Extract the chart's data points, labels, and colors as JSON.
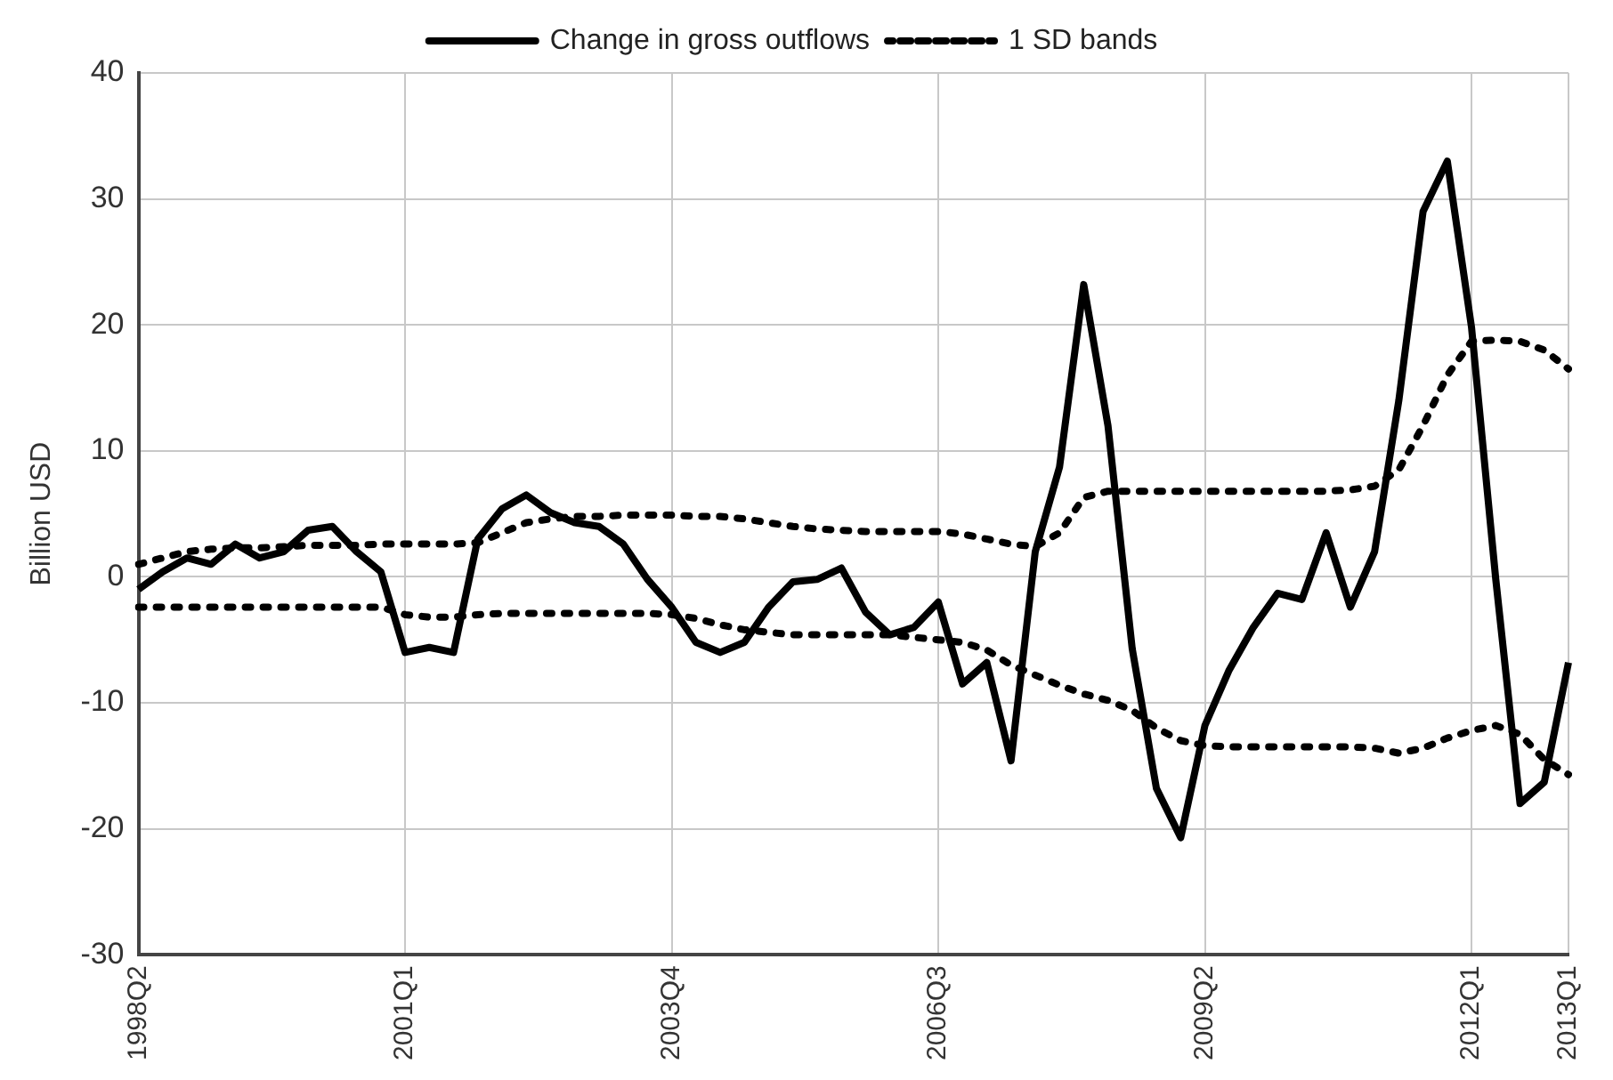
{
  "chart_data": {
    "type": "line",
    "ylabel": "Billion USD",
    "categories": [
      "1998Q2",
      null,
      null,
      null,
      null,
      null,
      null,
      null,
      null,
      null,
      null,
      "2001Q1",
      null,
      null,
      null,
      null,
      null,
      null,
      null,
      null,
      null,
      null,
      "2003Q4",
      null,
      null,
      null,
      null,
      null,
      null,
      null,
      null,
      null,
      null,
      "2006Q3",
      null,
      null,
      null,
      null,
      null,
      null,
      null,
      null,
      null,
      null,
      "2009Q2",
      null,
      null,
      null,
      null,
      null,
      null,
      null,
      null,
      null,
      null,
      "2012Q1",
      null,
      null,
      null,
      "2013Q1"
    ],
    "series": [
      {
        "name": "Change in gross outflows",
        "color": "#000000",
        "line_style": "solid",
        "values": [
          -1,
          0.4,
          1.5,
          1,
          2.6,
          1.5,
          2,
          3.7,
          4,
          2,
          0.4,
          -6,
          -5.6,
          -6,
          3,
          5.4,
          6.5,
          5.1,
          4.3,
          4,
          2.6,
          -0.2,
          -2.4,
          -5.2,
          -6,
          -5.2,
          -2.4,
          -0.4,
          -0.2,
          0.7,
          -2.8,
          -4.6,
          -4,
          -2,
          -8.5,
          -6.8,
          -14.6,
          2,
          8.7,
          23.2,
          12,
          -5.7,
          -16.8,
          -20.7,
          -11.8,
          -7.4,
          -4,
          -1.3,
          -1.8,
          3.5,
          -2.4,
          2,
          14,
          29,
          33,
          19.8,
          -0.2,
          -18,
          -16.3,
          -6.8
        ]
      },
      {
        "name": "1 SD bands",
        "color": "#000000",
        "line_style": "dotted",
        "values": [
          1,
          1.5,
          2,
          2.2,
          2.3,
          2.3,
          2.4,
          2.5,
          2.5,
          2.5,
          2.6,
          2.6,
          2.6,
          2.6,
          2.7,
          3.5,
          4.3,
          4.6,
          4.8,
          4.8,
          4.9,
          4.9,
          4.9,
          4.8,
          4.8,
          4.6,
          4.3,
          4,
          3.8,
          3.7,
          3.6,
          3.6,
          3.6,
          3.6,
          3.4,
          3,
          2.6,
          2.4,
          3.5,
          6.3,
          6.8,
          6.8,
          6.8,
          6.8,
          6.8,
          6.8,
          6.8,
          6.8,
          6.8,
          6.8,
          6.9,
          7.2,
          8.5,
          12,
          16,
          18.7,
          18.8,
          18.7,
          18,
          16.5
        ]
      },
      {
        "color": "#000000",
        "line_style": "dotted",
        "values": [
          -2.4,
          -2.4,
          -2.4,
          -2.4,
          -2.4,
          -2.4,
          -2.4,
          -2.4,
          -2.4,
          -2.4,
          -2.4,
          -3,
          -3.2,
          -3.2,
          -3,
          -2.9,
          -2.9,
          -2.9,
          -2.9,
          -2.9,
          -2.9,
          -2.9,
          -3,
          -3.3,
          -3.8,
          -4.2,
          -4.4,
          -4.6,
          -4.6,
          -4.6,
          -4.6,
          -4.6,
          -4.8,
          -5,
          -5.2,
          -5.8,
          -7,
          -7.8,
          -8.6,
          -9.3,
          -9.8,
          -10.6,
          -12,
          -13,
          -13.4,
          -13.5,
          -13.5,
          -13.5,
          -13.5,
          -13.5,
          -13.5,
          -13.6,
          -14,
          -13.6,
          -12.8,
          -12.2,
          -11.8,
          -12.5,
          -14.5,
          -15.7
        ]
      }
    ],
    "ylim": [
      -30,
      40
    ],
    "yticks": [
      -30,
      -20,
      -10,
      0,
      10,
      20,
      30,
      40
    ],
    "grid": true,
    "legend": "top",
    "marker": "none"
  }
}
